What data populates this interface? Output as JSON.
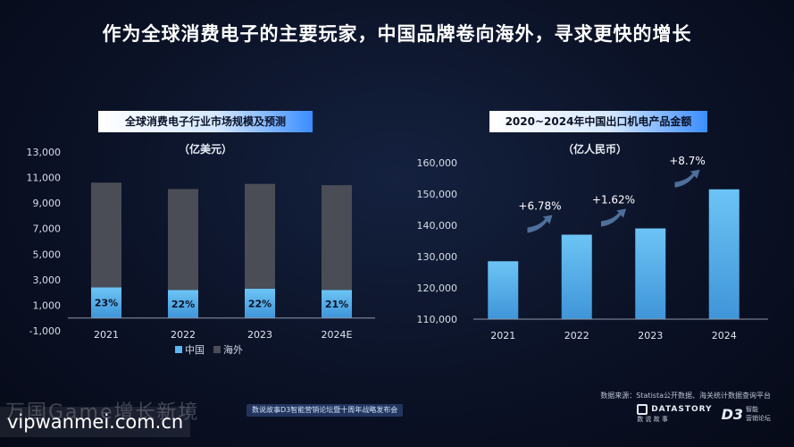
{
  "headline": "作为全球消费电子的主要玩家，中国品牌卷向海外，寻求更快的增长",
  "chart_data": [
    {
      "type": "bar",
      "stacked": true,
      "title": "全球消费电子行业市场规模及预测",
      "unit": "（亿美元）",
      "categories": [
        "2021",
        "2022",
        "2023",
        "2024E"
      ],
      "series": [
        {
          "name": "中国",
          "values": [
            2400,
            2200,
            2300,
            2200
          ],
          "labels": [
            "23%",
            "22%",
            "22%",
            "21%"
          ],
          "color": "#5cb8f0"
        },
        {
          "name": "海外",
          "values": [
            8200,
            7900,
            8200,
            8200
          ],
          "color": "#4a4d55"
        }
      ],
      "yticks": [
        "13,000",
        "11,000",
        "9,000",
        "7,000",
        "5,000",
        "3,000",
        "1,000",
        "-1,000"
      ],
      "ylim": [
        -1000,
        13000
      ],
      "legend_position": "bottom"
    },
    {
      "type": "bar",
      "title": "2020~2024年中国出口机电产品金额",
      "unit": "（亿人民币）",
      "categories": [
        "2021",
        "2022",
        "2023",
        "2024"
      ],
      "values": [
        128500,
        137000,
        139000,
        151500
      ],
      "color": "#5cb8f0",
      "annotations": [
        "+6.78%",
        "+1.62%",
        "+8.7%"
      ],
      "yticks": [
        "160,000",
        "150,000",
        "140,000",
        "130,000",
        "120,000",
        "110,000"
      ],
      "ylim": [
        110000,
        160000
      ]
    }
  ],
  "legend": {
    "china": "中国",
    "overseas": "海外"
  },
  "source": "数据来源：Statista公开数据、海关统计数据查询平台",
  "banner": "数说故事D3智能营销论坛暨十周年战略发布会",
  "brand": {
    "name": "DATASTORY",
    "sub": "数 说 故 事",
    "d3": "D3",
    "d3_sub1": "智能",
    "d3_sub2": "营销论坛"
  },
  "watermark": "万国Game增长新境",
  "watermark_url": "vipwanmei.com.cn",
  "colors": {
    "accent": "#5cb8f0",
    "overseas": "#4a4d55",
    "arrow": "#5a7fb0"
  }
}
